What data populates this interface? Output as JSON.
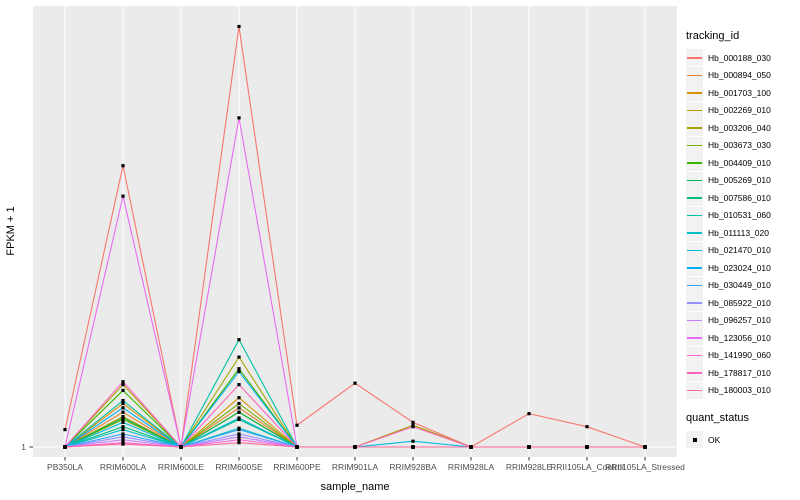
{
  "figure": {
    "background": "#FFFFFF",
    "panel_background": "#EBEBEB",
    "grid_color": "#FFFFFF",
    "tick_color": "#333333",
    "tick_label_color": "#4D4D4D",
    "marker_color": "#000000"
  },
  "chart_data": {
    "type": "line",
    "title": "",
    "xlabel": "sample_name",
    "ylabel": "FPKM + 1",
    "y_tick_labels": [
      "1"
    ],
    "ylim": [
      1,
      30
    ],
    "grid": "vertical-per-category-plus-baseline",
    "legend_position": "right",
    "legend_title": "tracking_id",
    "categories": [
      "PB350LA",
      "RRIM600LA",
      "RRIM600LE",
      "RRIM600SE",
      "RRIM600PE",
      "RRIM901LA",
      "RRIM928BA",
      "RRIM928LA",
      "RRIM928LE",
      "RRII105LA_Control",
      "RRII105LA_Stressed"
    ],
    "series": [
      {
        "name": "Hb_000188_030",
        "color": "#F8766D",
        "values": [
          2.2,
          20.4,
          1,
          30,
          2.5,
          5.4,
          2.7,
          1,
          3.3,
          2.4,
          1
        ]
      },
      {
        "name": "Hb_000894_050",
        "color": "#EA8331",
        "values": [
          1,
          3.4,
          1,
          3.7,
          1,
          1,
          1,
          1,
          1,
          1,
          1
        ]
      },
      {
        "name": "Hb_001703_100",
        "color": "#D89000",
        "values": [
          1,
          4.0,
          1,
          4.4,
          1,
          1,
          1,
          1,
          1,
          1,
          1
        ]
      },
      {
        "name": "Hb_002269_010",
        "color": "#C09B00",
        "values": [
          1,
          3.1,
          1,
          3.4,
          1,
          1,
          1,
          1,
          1,
          1,
          1
        ]
      },
      {
        "name": "Hb_003206_040",
        "color": "#A3A500",
        "values": [
          1,
          5.3,
          1,
          7.2,
          1,
          1,
          2.5,
          1,
          1,
          1,
          1
        ]
      },
      {
        "name": "Hb_003673_030",
        "color": "#7CAE00",
        "values": [
          1,
          2.9,
          1,
          4.0,
          1,
          1,
          1,
          1,
          1,
          1,
          1
        ]
      },
      {
        "name": "Hb_004409_010",
        "color": "#39B600",
        "values": [
          1,
          4.9,
          1,
          6.4,
          1,
          1,
          1,
          1,
          1,
          1,
          1
        ]
      },
      {
        "name": "Hb_005269_010",
        "color": "#00BB4E",
        "values": [
          1,
          3.0,
          1,
          3.4,
          1,
          1,
          1,
          1,
          1,
          1,
          1
        ]
      },
      {
        "name": "Hb_007586_010",
        "color": "#00BF7D",
        "values": [
          1,
          2.4,
          1,
          2.9,
          1,
          1,
          1,
          1,
          1,
          1,
          1
        ]
      },
      {
        "name": "Hb_010531_060",
        "color": "#00C1A3",
        "values": [
          1,
          4.2,
          1,
          8.4,
          1,
          1,
          1,
          1,
          1,
          1,
          1
        ]
      },
      {
        "name": "Hb_011113_020",
        "color": "#00BFC4",
        "values": [
          1,
          2.2,
          1,
          2.3,
          1,
          1,
          1,
          1,
          1,
          1,
          1
        ]
      },
      {
        "name": "Hb_021470_010",
        "color": "#00BAE0",
        "values": [
          1,
          2.7,
          1,
          3.0,
          1,
          1,
          1.4,
          1,
          1,
          1,
          1
        ]
      },
      {
        "name": "Hb_023024_010",
        "color": "#00B0F6",
        "values": [
          1,
          3.7,
          1,
          6.2,
          1,
          1,
          1,
          1,
          1,
          1,
          1
        ]
      },
      {
        "name": "Hb_030449_010",
        "color": "#35A2FF",
        "values": [
          1,
          1.9,
          1,
          2.2,
          1,
          1,
          1,
          1,
          1,
          1,
          1
        ]
      },
      {
        "name": "Hb_085922_010",
        "color": "#9590FF",
        "values": [
          1,
          1.7,
          1,
          1.9,
          1,
          1,
          1,
          1,
          1,
          1,
          1
        ]
      },
      {
        "name": "Hb_096257_010",
        "color": "#C77CFF",
        "values": [
          1,
          1.5,
          1,
          1.7,
          1,
          1,
          1,
          1,
          1,
          1,
          1
        ]
      },
      {
        "name": "Hb_123056_010",
        "color": "#E76BF3",
        "values": [
          1,
          18.3,
          1,
          23.7,
          1,
          1,
          1,
          1,
          1,
          1,
          1
        ]
      },
      {
        "name": "Hb_141990_060",
        "color": "#FA62DB",
        "values": [
          1,
          1.3,
          1,
          1.5,
          1,
          1,
          1,
          1,
          1,
          1,
          1
        ]
      },
      {
        "name": "Hb_178817_010",
        "color": "#FF62BC",
        "values": [
          1,
          5.5,
          1,
          5.3,
          1,
          1,
          2.4,
          1,
          1,
          1,
          1
        ]
      },
      {
        "name": "Hb_180003_010",
        "color": "#FF6A98",
        "values": [
          1,
          1.2,
          1,
          1.3,
          1,
          1,
          1,
          1,
          1,
          1,
          1
        ]
      }
    ],
    "quant_legend": {
      "title": "quant_status",
      "items": [
        {
          "label": "OK",
          "shape": "black-square"
        }
      ]
    }
  }
}
